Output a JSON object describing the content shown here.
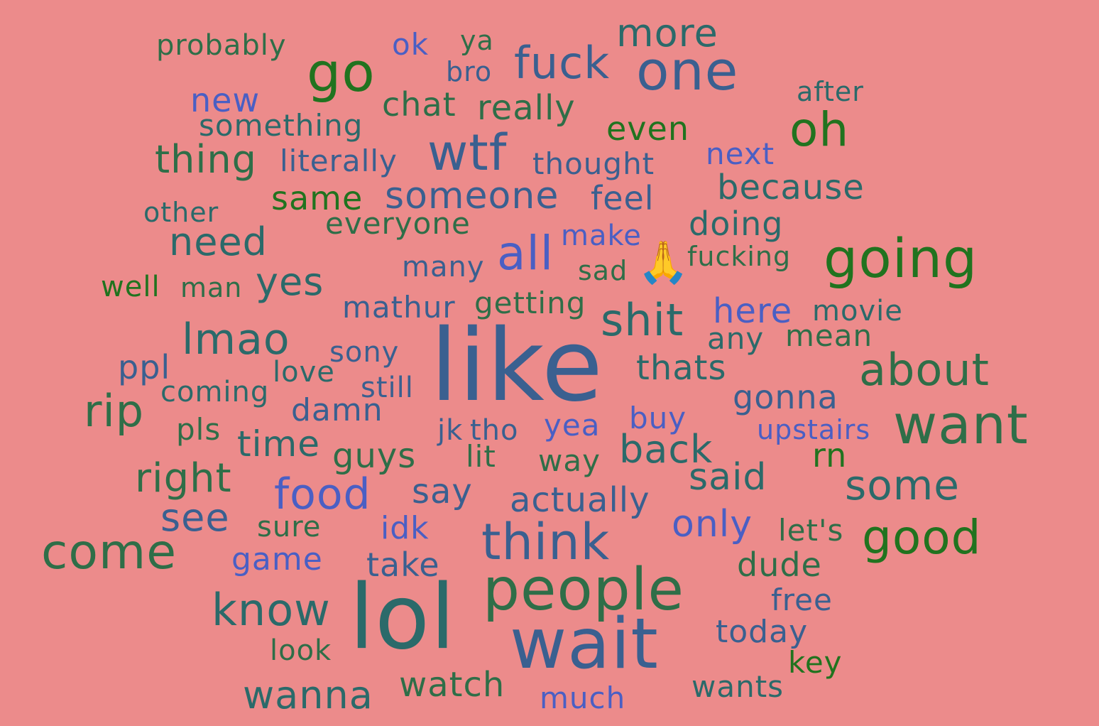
{
  "colors": {
    "background": "#ec8b8b",
    "blue": "#4a5fc4",
    "steel": "#3a6090",
    "teal": "#2b6a6a",
    "green": "#2f6e48",
    "dark_green": "#21731f"
  },
  "words": [
    "probably",
    "ok",
    "ya",
    "more",
    "go",
    "bro",
    "fuck",
    "one",
    "new",
    "chat",
    "really",
    "after",
    "something",
    "even",
    "oh",
    "thing",
    "literally",
    "wtf",
    "thought",
    "next",
    "because",
    "same",
    "someone",
    "feel",
    "other",
    "everyone",
    "doing",
    "make",
    "need",
    "all",
    "fucking",
    "going",
    "well",
    "man",
    "yes",
    "many",
    "sad",
    "mathur",
    "getting",
    "here",
    "movie",
    "shit",
    "lmao",
    "any",
    "mean",
    "sony",
    "ppl",
    "love",
    "thats",
    "about",
    "coming",
    "like",
    "still",
    "gonna",
    "rip",
    "damn",
    "buy",
    "upstairs",
    "want",
    "pls",
    "jk",
    "tho",
    "yea",
    "time",
    "guys",
    "lit",
    "way",
    "back",
    "rn",
    "right",
    "said",
    "food",
    "say",
    "some",
    "actually",
    "see",
    "sure",
    "only",
    "idk",
    "let's",
    "good",
    "come",
    "think",
    "game",
    "take",
    "dude",
    "people",
    "know",
    "lol",
    "free",
    "today",
    "look",
    "wait",
    "key",
    "watch",
    "wanna",
    "wants",
    "much"
  ],
  "emoji": "🙏"
}
